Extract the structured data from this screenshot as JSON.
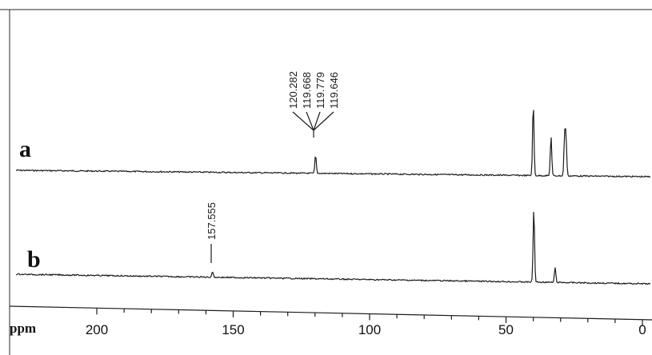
{
  "chart_data": {
    "type": "line",
    "xlabel": "ppm",
    "x_reversed": true,
    "xlim": [
      205,
      0
    ],
    "x_ticks": [
      200,
      150,
      100,
      50,
      0
    ],
    "x_tick_labels": [
      "200",
      "150",
      "100",
      "50",
      "0"
    ],
    "series": [
      {
        "name": "a",
        "peaks": [
          {
            "ppm": 119.8,
            "height": 0.25
          },
          {
            "ppm": 40.0,
            "height": 1.0
          },
          {
            "ppm": 33.5,
            "height": 0.55
          },
          {
            "ppm": 28.5,
            "height": 0.55
          },
          {
            "ppm": 28.0,
            "height": 0.5
          }
        ],
        "peak_annotations": [
          "120.282",
          "119.668",
          "119.779",
          "119.646"
        ]
      },
      {
        "name": "b",
        "peaks": [
          {
            "ppm": 157.6,
            "height": 0.08
          },
          {
            "ppm": 39.8,
            "height": 1.0
          },
          {
            "ppm": 32.0,
            "height": 0.2
          }
        ],
        "peak_annotations": [
          "157.555"
        ]
      }
    ]
  }
}
